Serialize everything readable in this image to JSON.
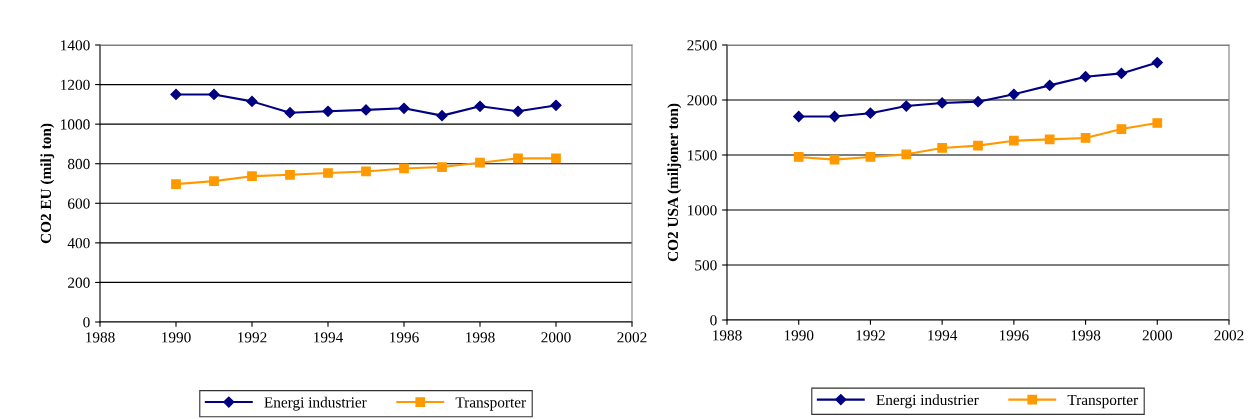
{
  "chart_data": [
    {
      "type": "line",
      "ylabel": "CO2 EU (milj ton)",
      "x": [
        1990,
        1991,
        1992,
        1993,
        1994,
        1995,
        1996,
        1997,
        1998,
        1999,
        2000
      ],
      "xlim": [
        1988,
        2002
      ],
      "xticks": [
        1988,
        1990,
        1992,
        1994,
        1996,
        1998,
        2000,
        2002
      ],
      "ylim": [
        0,
        1400
      ],
      "yticks": [
        0,
        200,
        400,
        600,
        800,
        1000,
        1200,
        1400
      ],
      "grid": "y",
      "legend": "bottom",
      "series": [
        {
          "name": "Energi industrier",
          "color": "#000080",
          "marker": "diamond",
          "values": [
            1150,
            1150,
            1115,
            1058,
            1065,
            1072,
            1080,
            1043,
            1090,
            1065,
            1095
          ]
        },
        {
          "name": "Transporter",
          "color": "#ff9900",
          "marker": "square",
          "values": [
            697,
            712,
            737,
            744,
            753,
            761,
            776,
            783,
            805,
            827,
            827
          ]
        }
      ]
    },
    {
      "type": "line",
      "ylabel": "CO2 USA (miljoner ton)",
      "x": [
        1990,
        1991,
        1992,
        1993,
        1994,
        1995,
        1996,
        1997,
        1998,
        1999,
        2000
      ],
      "xlim": [
        1988,
        2002
      ],
      "xticks": [
        1988,
        1990,
        1992,
        1994,
        1996,
        1998,
        2000,
        2002
      ],
      "ylim": [
        0,
        2500
      ],
      "yticks": [
        0,
        500,
        1000,
        1500,
        2000,
        2500
      ],
      "grid": "y",
      "legend": "bottom",
      "series": [
        {
          "name": "Energi industrier",
          "color": "#000080",
          "marker": "diamond",
          "values": [
            1850,
            1850,
            1880,
            1945,
            1973,
            1985,
            2052,
            2133,
            2212,
            2242,
            2340
          ]
        },
        {
          "name": "Transporter",
          "color": "#ff9900",
          "marker": "square",
          "values": [
            1482,
            1458,
            1482,
            1506,
            1564,
            1585,
            1630,
            1642,
            1655,
            1736,
            1791
          ]
        }
      ]
    }
  ]
}
